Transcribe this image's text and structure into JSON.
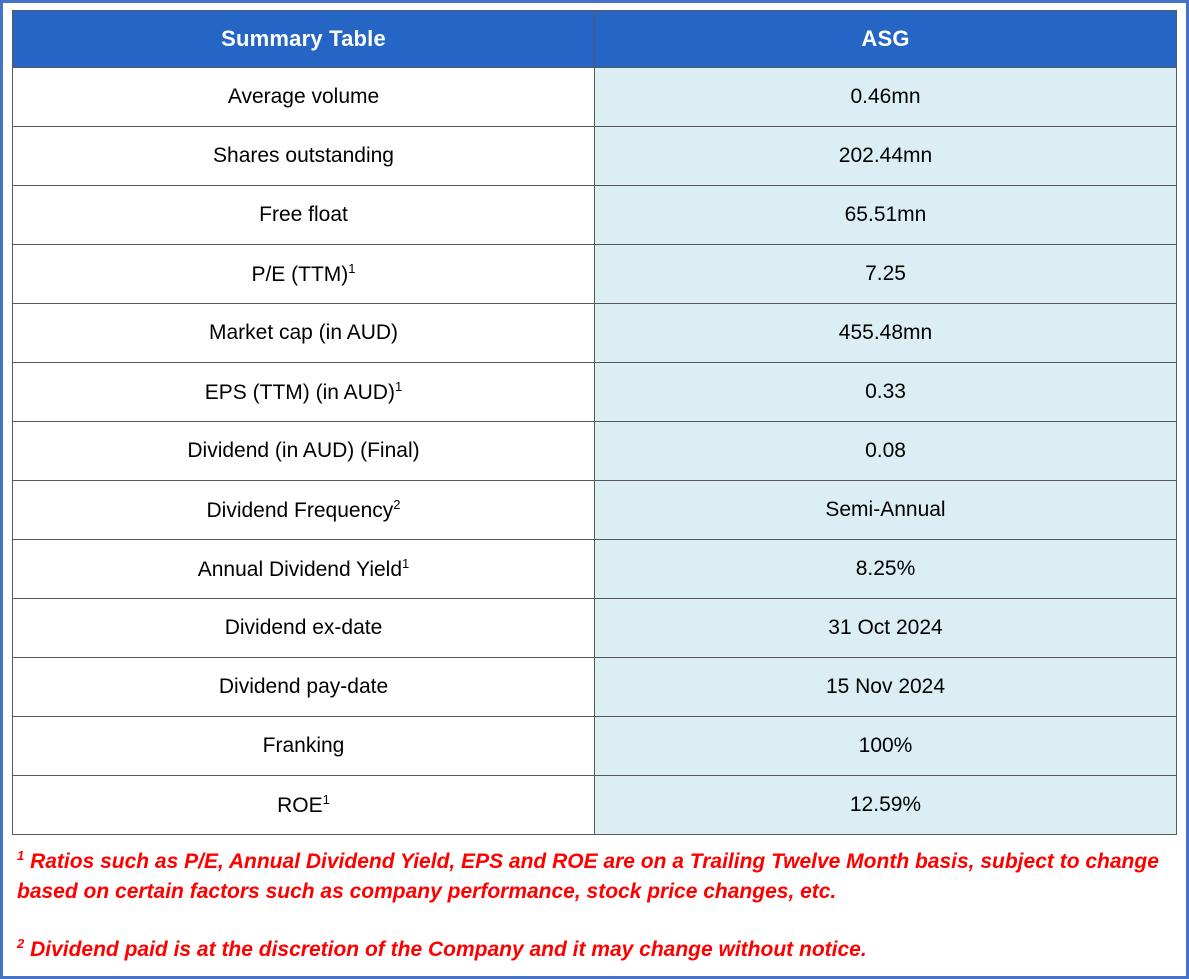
{
  "table": {
    "header": {
      "left": "Summary Table",
      "right": "ASG"
    },
    "rows": [
      {
        "label": "Average volume",
        "sup": "",
        "value": "0.46mn"
      },
      {
        "label": "Shares outstanding",
        "sup": "",
        "value": "202.44mn"
      },
      {
        "label": "Free float",
        "sup": "",
        "value": "65.51mn"
      },
      {
        "label": "P/E (TTM)",
        "sup": "1",
        "value": "7.25"
      },
      {
        "label": "Market cap (in AUD)",
        "sup": "",
        "value": "455.48mn"
      },
      {
        "label": "EPS (TTM) (in AUD)",
        "sup": "1",
        "value": "0.33"
      },
      {
        "label": "Dividend (in AUD) (Final)",
        "sup": "",
        "value": "0.08"
      },
      {
        "label": "Dividend Frequency",
        "sup": "2",
        "value": "Semi-Annual"
      },
      {
        "label": "Annual Dividend Yield",
        "sup": "1",
        "value": "8.25%"
      },
      {
        "label": "Dividend ex-date",
        "sup": "",
        "value": "31 Oct 2024"
      },
      {
        "label": "Dividend pay-date",
        "sup": "",
        "value": "15 Nov 2024"
      },
      {
        "label": "Franking",
        "sup": "",
        "value": "100%"
      },
      {
        "label": "ROE",
        "sup": "1",
        "value": "12.59%"
      }
    ]
  },
  "footnotes": [
    {
      "sup": "1",
      "text": "Ratios such as P/E, Annual Dividend Yield, EPS and ROE are on a Trailing Twelve Month basis, subject to change based on certain factors such as company performance, stock price changes, etc."
    },
    {
      "sup": "2",
      "text": "Dividend paid is at the discretion of the Company and it may change without notice."
    }
  ],
  "colors": {
    "header_bg": "#2465c5",
    "header_text": "#ffffff",
    "value_cell_bg": "#daeef3",
    "label_cell_bg": "#ffffff",
    "cell_border": "#595959",
    "outer_border": "#4472c4",
    "footnote_text": "#ff0000"
  }
}
